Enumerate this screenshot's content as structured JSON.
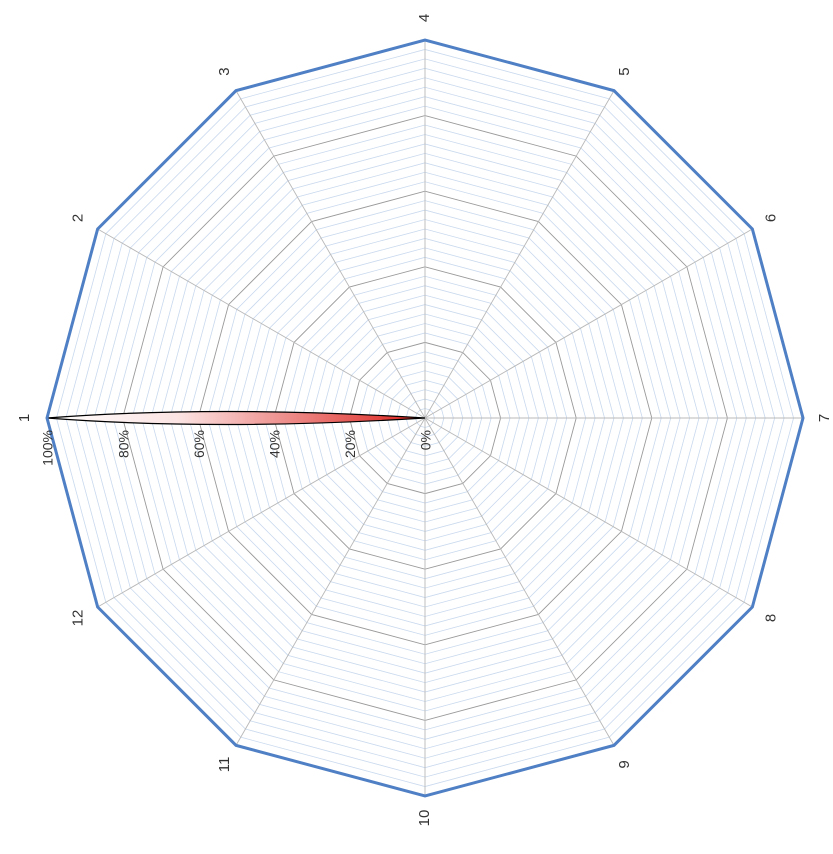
{
  "chart_data": {
    "type": "radar",
    "categories": [
      "1",
      "2",
      "3",
      "4",
      "5",
      "6",
      "7",
      "8",
      "9",
      "10",
      "11",
      "12"
    ],
    "series": [
      {
        "values": [
          100,
          0,
          0,
          0,
          0,
          0,
          0,
          0,
          0,
          0,
          0,
          0
        ]
      }
    ],
    "tick_labels": [
      "0%",
      "20%",
      "40%",
      "60%",
      "80%",
      "100%"
    ],
    "range": [
      0,
      100
    ],
    "major_step": 20,
    "minor_step": 2.5,
    "grid": true,
    "legend": "none",
    "orientation": "rotated 90 degrees counter-clockwise",
    "colors": {
      "outline": "#4f7fc4",
      "major_grid": "#9a9a9a",
      "minor_grid": "#c9d9ee",
      "spoke": "#b8b8b8",
      "fill_start": "#ffffff",
      "fill_end": "#dd1f1a",
      "mark_stroke": "#000000"
    }
  }
}
